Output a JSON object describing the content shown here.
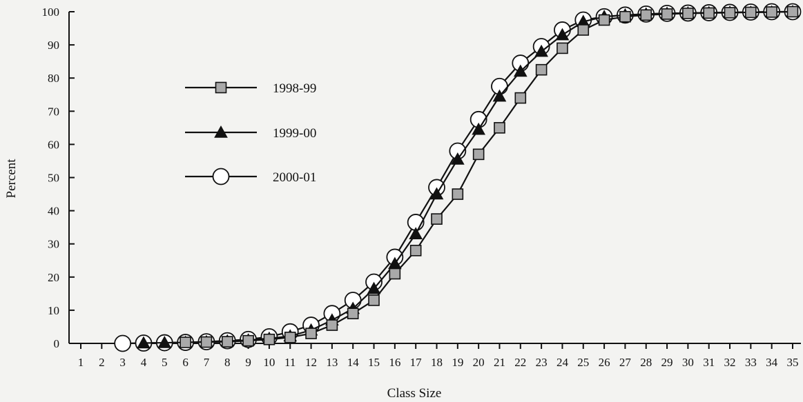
{
  "chart_data": {
    "type": "line",
    "xlabel": "Class Size",
    "ylabel": "Percent",
    "x": [
      1,
      2,
      3,
      4,
      5,
      6,
      7,
      8,
      9,
      10,
      11,
      12,
      13,
      14,
      15,
      16,
      17,
      18,
      19,
      20,
      21,
      22,
      23,
      24,
      25,
      26,
      27,
      28,
      29,
      30,
      31,
      32,
      33,
      34,
      35
    ],
    "xlim": [
      1,
      35
    ],
    "ylim": [
      0,
      100
    ],
    "y_ticks": [
      0,
      10,
      20,
      30,
      40,
      50,
      60,
      70,
      80,
      90,
      100
    ],
    "grid": false,
    "legend_position": "upper-left",
    "series": [
      {
        "name": "1998-99",
        "marker": "square",
        "x": [
          6,
          7,
          8,
          9,
          10,
          11,
          12,
          13,
          14,
          15,
          16,
          17,
          18,
          19,
          20,
          21,
          22,
          23,
          24,
          25,
          26,
          27,
          28,
          29,
          30,
          31,
          32,
          33,
          34,
          35
        ],
        "values": [
          0.3,
          0.4,
          0.5,
          0.8,
          1.2,
          1.8,
          3,
          5.5,
          9,
          13,
          21,
          28,
          37.5,
          45,
          57,
          65,
          74,
          82.5,
          89,
          94.5,
          97.5,
          98.5,
          99,
          99.3,
          99.5,
          99.6,
          99.7,
          99.8,
          99.9,
          100
        ]
      },
      {
        "name": "1999-00",
        "marker": "triangle",
        "x": [
          4,
          5,
          6,
          7,
          8,
          9,
          10,
          11,
          12,
          13,
          14,
          15,
          16,
          17,
          18,
          19,
          20,
          21,
          22,
          23,
          24,
          25,
          26,
          27,
          28,
          29,
          30,
          31,
          32,
          33,
          34,
          35
        ],
        "values": [
          0.1,
          0.2,
          0.3,
          0.5,
          0.7,
          1,
          1.5,
          2.2,
          4,
          7,
          10.5,
          16.5,
          24,
          33,
          45,
          55.5,
          64.5,
          74.5,
          82,
          88,
          93,
          97,
          98.5,
          99,
          99.3,
          99.5,
          99.6,
          99.7,
          99.8,
          99.8,
          99.9,
          100
        ]
      },
      {
        "name": "2000-01",
        "marker": "circle",
        "x": [
          3,
          4,
          5,
          6,
          7,
          8,
          9,
          10,
          11,
          12,
          13,
          14,
          15,
          16,
          17,
          18,
          19,
          20,
          21,
          22,
          23,
          24,
          25,
          26,
          27,
          28,
          29,
          30,
          31,
          32,
          33,
          34,
          35
        ],
        "values": [
          0,
          0.1,
          0.2,
          0.3,
          0.5,
          0.8,
          1.2,
          2,
          3.5,
          5.5,
          9,
          13,
          18.5,
          26,
          36.5,
          47,
          58,
          67.5,
          77.5,
          84.5,
          89.5,
          94.5,
          97.5,
          98.5,
          99,
          99.3,
          99.5,
          99.6,
          99.7,
          99.8,
          99.9,
          100,
          100
        ]
      }
    ]
  }
}
